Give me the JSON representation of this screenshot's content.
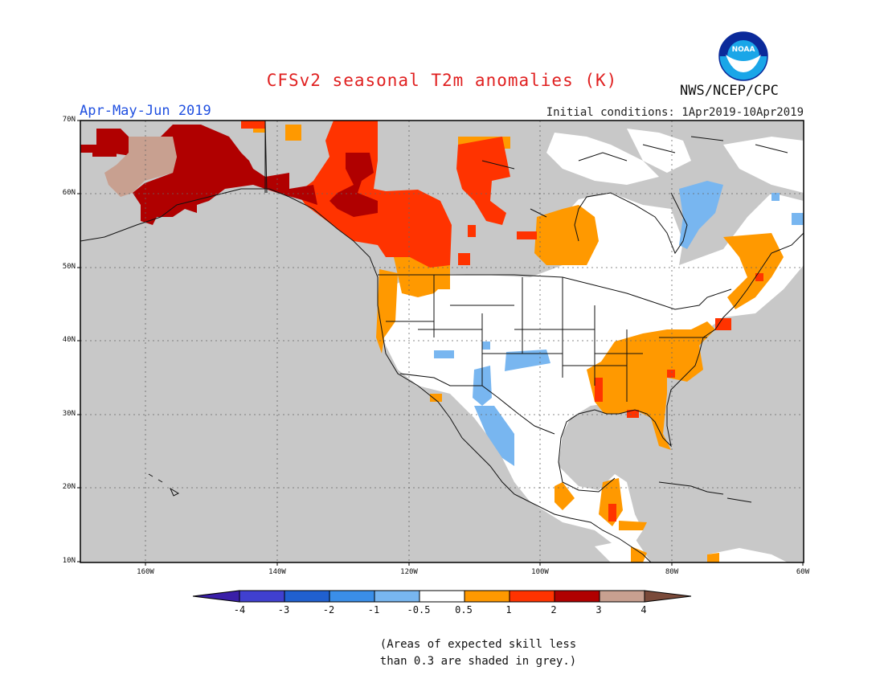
{
  "title": "CFSv2 seasonal T2m anomalies (K)",
  "period": "Apr-May-Jun 2019",
  "initial_conditions": "Initial conditions: 1Apr2019-10Apr2019",
  "agency": "NWS/NCEP/CPC",
  "logo_text": "NOAA",
  "latitude_labels": [
    "70N",
    "60N",
    "50N",
    "40N",
    "30N",
    "20N",
    "10N"
  ],
  "longitude_labels": [
    "160W",
    "140W",
    "120W",
    "100W",
    "80W",
    "60W"
  ],
  "colorbar": {
    "labels": [
      "-4",
      "-3",
      "-2",
      "-1",
      "-0.5",
      "0.5",
      "1",
      "2",
      "3",
      "4"
    ],
    "colors": [
      "#3a1fa8",
      "#4040d0",
      "#2060d0",
      "#3a8ee8",
      "#78b6f0",
      "#ffffff",
      "#ff9900",
      "#ff3300",
      "#b00000",
      "#c8a090",
      "#7a4a3a"
    ]
  },
  "note": [
    "(Areas of expected skill less",
    "than 0.3 are shaded in grey.)"
  ],
  "colors": {
    "no_skill": "#c8c8c8",
    "near_normal": "#ffffff",
    "warm_05_1": "#ff9900",
    "warm_1_2": "#ff3300",
    "warm_2_3": "#b00000",
    "warm_3_4": "#c8a090",
    "cool_05_1": "#78b6f0"
  }
}
